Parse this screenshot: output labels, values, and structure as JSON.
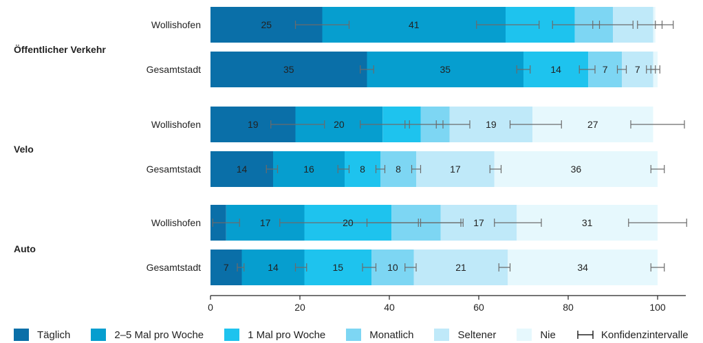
{
  "chart_data": {
    "type": "bar",
    "orientation": "horizontal",
    "stacked": true,
    "xlim": [
      0,
      100
    ],
    "x_ticks": [
      "0",
      "20",
      "40",
      "60",
      "80",
      "100"
    ],
    "grid": false,
    "legend_placement": "bottom",
    "categories": [
      {
        "group": "Öffentlicher Verkehr",
        "label": "Wollishofen"
      },
      {
        "group": "Öffentlicher Verkehr",
        "label": "Gesamtstadt"
      },
      {
        "group": "Velo",
        "label": "Wollishofen"
      },
      {
        "group": "Velo",
        "label": "Gesamtstadt"
      },
      {
        "group": "Auto",
        "label": "Wollishofen"
      },
      {
        "group": "Auto",
        "label": "Gesamtstadt"
      }
    ],
    "groups": [
      "Öffentlicher Verkehr",
      "Velo",
      "Auto"
    ],
    "series": [
      {
        "name": "Täglich",
        "color": "#0a6fa8",
        "values": [
          25,
          35,
          19,
          14,
          3.5,
          7
        ],
        "labels": [
          "25",
          "35",
          "19",
          "14",
          "",
          "7"
        ],
        "ci_upper": [
          31,
          36.5,
          25.5,
          15,
          6.5,
          7.5
        ]
      },
      {
        "name": "2–5 Mal pro Woche",
        "color": "#069ecf",
        "values": [
          41,
          35,
          19.5,
          16,
          17.5,
          14
        ],
        "labels": [
          "41",
          "35",
          "20",
          "16",
          "17",
          "14"
        ],
        "ci_upper": [
          73.5,
          71.5,
          44.5,
          31,
          46.5,
          21.5
        ]
      },
      {
        "name": "1 Mal pro Woche",
        "color": "#1ec3ee",
        "values": [
          15.5,
          14.5,
          8.5,
          8,
          19.5,
          15
        ],
        "labels": [
          "",
          "14",
          "",
          "8",
          "20",
          "15"
        ],
        "ci_upper": [
          87,
          86,
          52,
          39,
          56,
          37
        ]
      },
      {
        "name": "Monatlich",
        "color": "#7dd6f3",
        "values": [
          8.5,
          7.5,
          6.5,
          8,
          11,
          9.5
        ],
        "labels": [
          "",
          "7",
          "",
          "8",
          "",
          "10"
        ],
        "ci_upper": [
          94.5,
          93,
          58,
          47,
          56.5,
          46
        ]
      },
      {
        "name": "Seltener",
        "color": "#bfe9f9",
        "values": [
          9,
          7,
          18.5,
          17.5,
          17,
          21
        ],
        "labels": [
          "",
          "7",
          "19",
          "17",
          "17",
          "21"
        ],
        "ci_upper": [
          101,
          99.5,
          78.5,
          65,
          74,
          67
        ]
      },
      {
        "name": "Nie",
        "color": "#e6f8fd",
        "values": [
          0.5,
          1,
          27,
          36.5,
          31.5,
          33.5
        ],
        "labels": [
          "",
          "",
          "27",
          "36",
          "31",
          "34"
        ],
        "ci_upper": [
          103.5,
          100.5,
          106,
          101.5,
          106.5,
          101.5
        ]
      }
    ],
    "ci_lower": [
      [
        19,
        33.5,
        13.5,
        12.5,
        0.5,
        6
      ],
      [
        59.5,
        68.5,
        33.5,
        28.5,
        15.5,
        19
      ],
      [
        76.5,
        82.5,
        43.5,
        37,
        35,
        34
      ],
      [
        85.5,
        91,
        50.5,
        45,
        47,
        43.5
      ],
      [
        95.5,
        97.5,
        67,
        62.5,
        63.5,
        64.5
      ],
      [
        99.5,
        98.5,
        94,
        98.5,
        93.5,
        98.5
      ]
    ],
    "ci_legend_label": "Konfidenzintervalle"
  },
  "colors": {
    "axis": "#222222",
    "ci": "#6b6b6b",
    "text": "#222222"
  }
}
